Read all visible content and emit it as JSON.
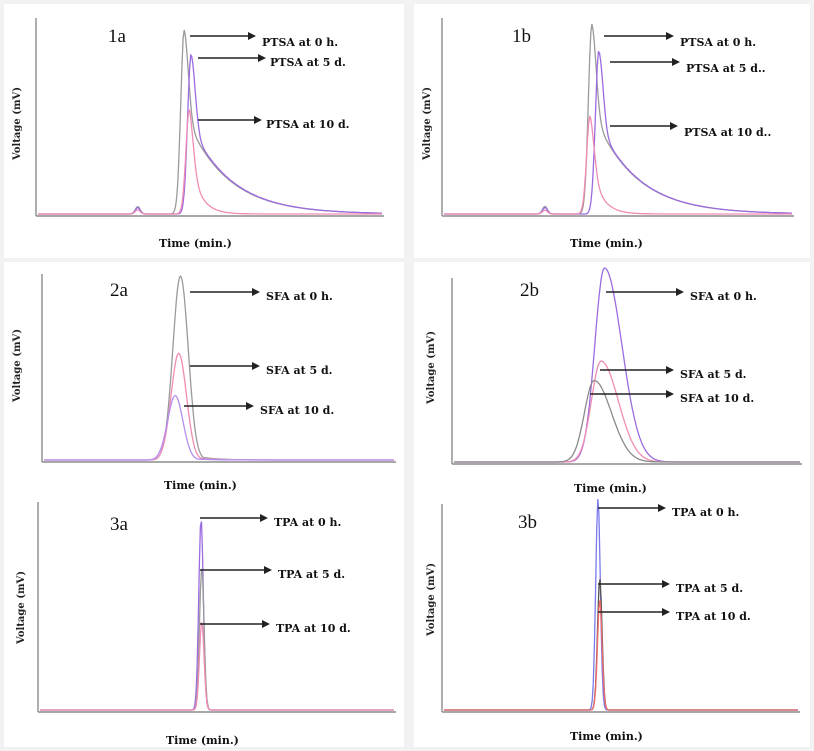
{
  "chart_data": [
    {
      "id": "1a",
      "type": "line",
      "panel_label": "1a",
      "xlabel": "Time (min.)",
      "ylabel": "Voltage (mV)",
      "series": [
        {
          "name": "PTSA at 0 h.",
          "color": "#9a9a9a",
          "peak": 1.0,
          "center": 0.425
        },
        {
          "name": "PTSA at 5 d.",
          "color": "#9b6be0",
          "peak": 0.87,
          "center": 0.445
        },
        {
          "name": "PTSA at 10 d.",
          "color": "#f08cb4",
          "peak": 0.57,
          "center": 0.44
        }
      ]
    },
    {
      "id": "1b",
      "type": "line",
      "panel_label": "1b",
      "xlabel": "Time (min.)",
      "ylabel": "Voltage (mV)",
      "series": [
        {
          "name": "PTSA at 0 h.",
          "color": "#9a9a9a",
          "peak": 1.0,
          "center": 0.425
        },
        {
          "name": "PTSA at 5 d..",
          "color": "#9b6be0",
          "peak": 0.86,
          "center": 0.445
        },
        {
          "name": "PTSA at 10 d..",
          "color": "#f08cb4",
          "peak": 0.52,
          "center": 0.42
        }
      ]
    },
    {
      "id": "2a",
      "type": "line",
      "panel_label": "2a",
      "xlabel": "Time (min.)",
      "ylabel": "Voltage (mV)",
      "series": [
        {
          "name": "SFA at 0 h.",
          "color": "#9a9a9a",
          "peak": 1.0,
          "center": 0.39
        },
        {
          "name": "SFA at 5 d.",
          "color": "#f08cb4",
          "peak": 0.58,
          "center": 0.385
        },
        {
          "name": "SFA at 10 d.",
          "color": "#b48ef0",
          "peak": 0.35,
          "center": 0.375
        }
      ]
    },
    {
      "id": "2b",
      "type": "line",
      "panel_label": "2b",
      "xlabel": "Time (min.)",
      "ylabel": "Voltage (mV)",
      "series": [
        {
          "name": "SFA at 0 h.",
          "color": "#9b6be0",
          "peak": 1.0,
          "center": 0.435
        },
        {
          "name": "SFA at 5 d.",
          "color": "#f08cb4",
          "peak": 0.52,
          "center": 0.425
        },
        {
          "name": "SFA at 10 d.",
          "color": "#8a8a8a",
          "peak": 0.42,
          "center": 0.405
        }
      ]
    },
    {
      "id": "3a",
      "type": "line",
      "panel_label": "3a",
      "xlabel": "Time (min.)",
      "ylabel": "Voltage (mV)",
      "series": [
        {
          "name": "TPA at 0 h.",
          "color": "#9b6be0",
          "peak": 1.0,
          "center": 0.455
        },
        {
          "name": "TPA at 5 d.",
          "color": "#9a9a9a",
          "peak": 0.74,
          "center": 0.457
        },
        {
          "name": "TPA at 10 d.",
          "color": "#f08cb4",
          "peak": 0.46,
          "center": 0.457
        }
      ]
    },
    {
      "id": "3b",
      "type": "line",
      "panel_label": "3b",
      "xlabel": "Time (min.)",
      "ylabel": "Voltage (mV)",
      "series": [
        {
          "name": "TPA at 0 h.",
          "color": "#7a7aee",
          "peak": 1.0,
          "center": 0.435
        },
        {
          "name": "TPA at 5 d.",
          "color": "#555555",
          "peak": 0.62,
          "center": 0.44
        },
        {
          "name": "TPA at 10 d.",
          "color": "#f06a6a",
          "peak": 0.52,
          "center": 0.44
        }
      ]
    }
  ]
}
